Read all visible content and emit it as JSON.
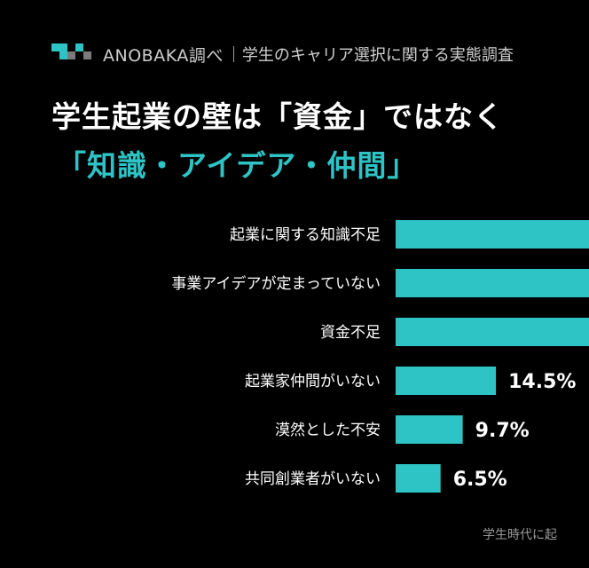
{
  "header": {
    "brand": "ANOBAKA調べ",
    "subject": "学生のキャリア選択に関する実態調査"
  },
  "title_line1": "学生起業の壁は「資金」ではなく",
  "title_line2": "「知識・アイデア・仲間」",
  "footnote": "学生時代に起",
  "colors": {
    "background": "#000000",
    "accent": "#2ec4c6",
    "bar": "#2ec4c6",
    "text": "#ffffff",
    "muted": "#cfcfcf"
  },
  "chart_data": {
    "type": "bar",
    "orientation": "horizontal",
    "categories": [
      "起業に関する知識不足",
      "事業アイデアが定まっていない",
      "資金不足",
      "起業家仲間がいない",
      "漠然とした不安",
      "共同創業者がいない"
    ],
    "values": [
      null,
      null,
      null,
      14.5,
      9.7,
      6.5
    ],
    "value_labels": [
      "",
      "",
      "",
      "14.5%",
      "9.7%",
      "6.5%"
    ],
    "unit": "%",
    "title": "",
    "xlabel": "",
    "ylabel": "",
    "grid": false
  }
}
